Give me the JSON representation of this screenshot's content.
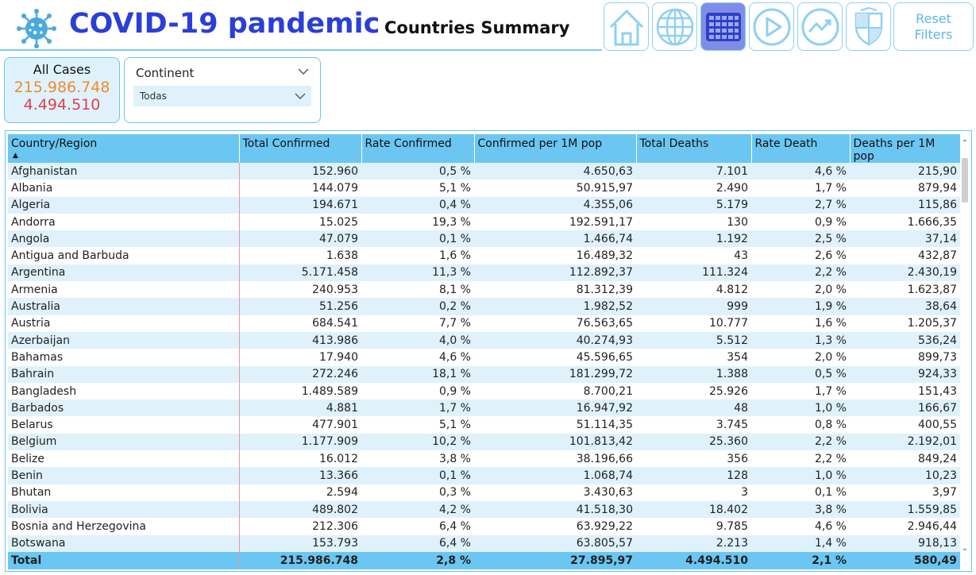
{
  "header": {
    "app_title": "COVID-19 pandemic",
    "page_title": "Countries Summary",
    "reset_label_line1": "Reset",
    "reset_label_line2": "Filters",
    "nav_icons": [
      "home-icon",
      "globe-icon",
      "grid-icon",
      "play-icon",
      "trend-icon",
      "university-shield-icon"
    ],
    "accent_color": "#2b3fd6"
  },
  "card": {
    "label": "All Cases",
    "confirmed": "215.986.748",
    "deaths": "4.494.510"
  },
  "slicer": {
    "title": "Continent",
    "selected": "Todas"
  },
  "table": {
    "columns": [
      "Country/Region",
      "Total Confirmed",
      "Rate Confirmed",
      "Confirmed per 1M pop",
      "Total Deaths",
      "Rate Death",
      "Deaths per 1M pop"
    ],
    "rows": [
      [
        "Afghanistan",
        "152.960",
        "0,5 %",
        "4.650,63",
        "7.101",
        "4,6 %",
        "215,90"
      ],
      [
        "Albania",
        "144.079",
        "5,1 %",
        "50.915,97",
        "2.490",
        "1,7 %",
        "879,94"
      ],
      [
        "Algeria",
        "194.671",
        "0,4 %",
        "4.355,06",
        "5.179",
        "2,7 %",
        "115,86"
      ],
      [
        "Andorra",
        "15.025",
        "19,3 %",
        "192.591,17",
        "130",
        "0,9 %",
        "1.666,35"
      ],
      [
        "Angola",
        "47.079",
        "0,1 %",
        "1.466,74",
        "1.192",
        "2,5 %",
        "37,14"
      ],
      [
        "Antigua and Barbuda",
        "1.638",
        "1,6 %",
        "16.489,32",
        "43",
        "2,6 %",
        "432,87"
      ],
      [
        "Argentina",
        "5.171.458",
        "11,3 %",
        "112.892,37",
        "111.324",
        "2,2 %",
        "2.430,19"
      ],
      [
        "Armenia",
        "240.953",
        "8,1 %",
        "81.312,39",
        "4.812",
        "2,0 %",
        "1.623,87"
      ],
      [
        "Australia",
        "51.256",
        "0,2 %",
        "1.982,52",
        "999",
        "1,9 %",
        "38,64"
      ],
      [
        "Austria",
        "684.541",
        "7,7 %",
        "76.563,65",
        "10.777",
        "1,6 %",
        "1.205,37"
      ],
      [
        "Azerbaijan",
        "413.986",
        "4,0 %",
        "40.274,93",
        "5.512",
        "1,3 %",
        "536,24"
      ],
      [
        "Bahamas",
        "17.940",
        "4,6 %",
        "45.596,65",
        "354",
        "2,0 %",
        "899,73"
      ],
      [
        "Bahrain",
        "272.246",
        "18,1 %",
        "181.299,72",
        "1.388",
        "0,5 %",
        "924,33"
      ],
      [
        "Bangladesh",
        "1.489.589",
        "0,9 %",
        "8.700,21",
        "25.926",
        "1,7 %",
        "151,43"
      ],
      [
        "Barbados",
        "4.881",
        "1,7 %",
        "16.947,92",
        "48",
        "1,0 %",
        "166,67"
      ],
      [
        "Belarus",
        "477.901",
        "5,1 %",
        "51.114,35",
        "3.745",
        "0,8 %",
        "400,55"
      ],
      [
        "Belgium",
        "1.177.909",
        "10,2 %",
        "101.813,42",
        "25.360",
        "2,2 %",
        "2.192,01"
      ],
      [
        "Belize",
        "16.012",
        "3,8 %",
        "38.196,66",
        "356",
        "2,2 %",
        "849,24"
      ],
      [
        "Benin",
        "13.366",
        "0,1 %",
        "1.068,74",
        "128",
        "1,0 %",
        "10,23"
      ],
      [
        "Bhutan",
        "2.594",
        "0,3 %",
        "3.430,63",
        "3",
        "0,1 %",
        "3,97"
      ],
      [
        "Bolivia",
        "489.802",
        "4,2 %",
        "41.518,30",
        "18.402",
        "3,8 %",
        "1.559,85"
      ],
      [
        "Bosnia and Herzegovina",
        "212.306",
        "6,4 %",
        "63.929,22",
        "9.785",
        "4,6 %",
        "2.946,44"
      ],
      [
        "Botswana",
        "153.793",
        "6,4 %",
        "63.805,57",
        "2.213",
        "1,4 %",
        "918,13"
      ]
    ],
    "total": [
      "Total",
      "215.986.748",
      "2,8 %",
      "27.895,97",
      "4.494.510",
      "2,1 %",
      "580,49"
    ]
  }
}
